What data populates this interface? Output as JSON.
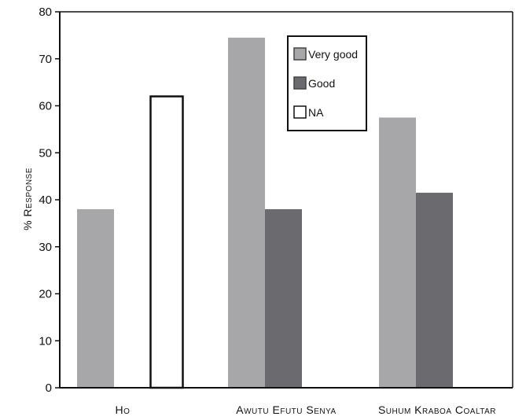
{
  "chart_data": {
    "type": "bar",
    "categories": [
      "Ho",
      "Awutu Efutu Senya",
      "Suhum Kraboa Coaltar"
    ],
    "series": [
      {
        "name": "Very good",
        "values": [
          38,
          74.5,
          57.5
        ],
        "color": "#a7a7aa"
      },
      {
        "name": "Good",
        "values": [
          0,
          38,
          41.5
        ],
        "color": "#6b6b6f"
      },
      {
        "name": "NA",
        "values": [
          62,
          0,
          0
        ],
        "color": "#ffffff"
      }
    ],
    "title": "",
    "xlabel": "",
    "ylabel": "% Response",
    "ylim": [
      0,
      80
    ],
    "yticks": [
      0,
      10,
      20,
      30,
      40,
      50,
      60,
      70,
      80
    ],
    "grid": false,
    "legend_position": "top-right"
  }
}
